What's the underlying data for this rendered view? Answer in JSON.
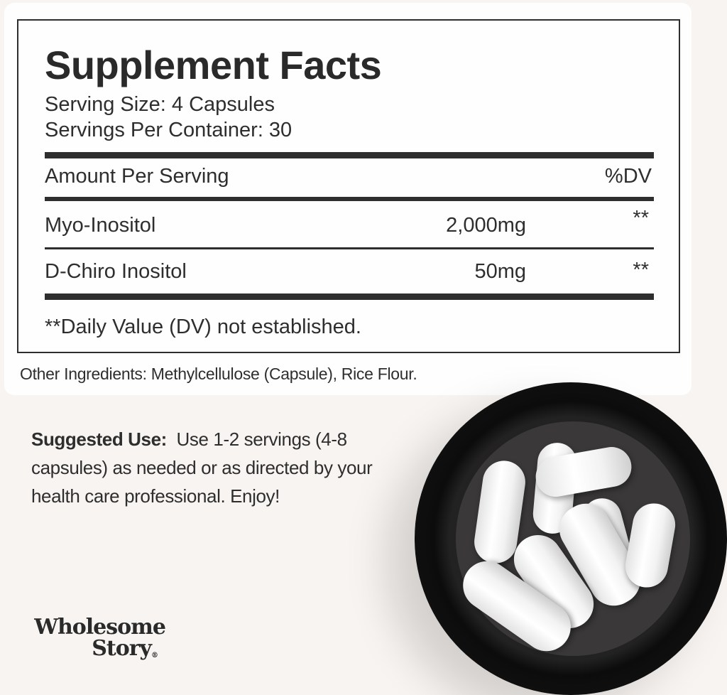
{
  "facts": {
    "title": "Supplement Facts",
    "serving_size": "Serving Size: 4 Capsules",
    "servings_per_container": "Servings Per Container: 30",
    "amount_header": "Amount Per Serving",
    "dv_header": "%DV",
    "rows": [
      {
        "name": "Myo-Inositol",
        "amount": "2,000mg",
        "dv": "**"
      },
      {
        "name": "D-Chiro Inositol",
        "amount": "50mg",
        "dv": "**"
      }
    ],
    "footnote": "**Daily Value (DV) not established."
  },
  "other_ingredients": "Other Ingredients: Methylcellulose (Capsule), Rice Flour.",
  "suggested_use": {
    "label": "Suggested Use:",
    "text": "Use 1-2 servings (4-8 capsules) as needed or as directed by your health care professional. Enjoy!"
  },
  "logo": {
    "line1": "Wholesome",
    "line2": "Story",
    "mark": "®"
  }
}
